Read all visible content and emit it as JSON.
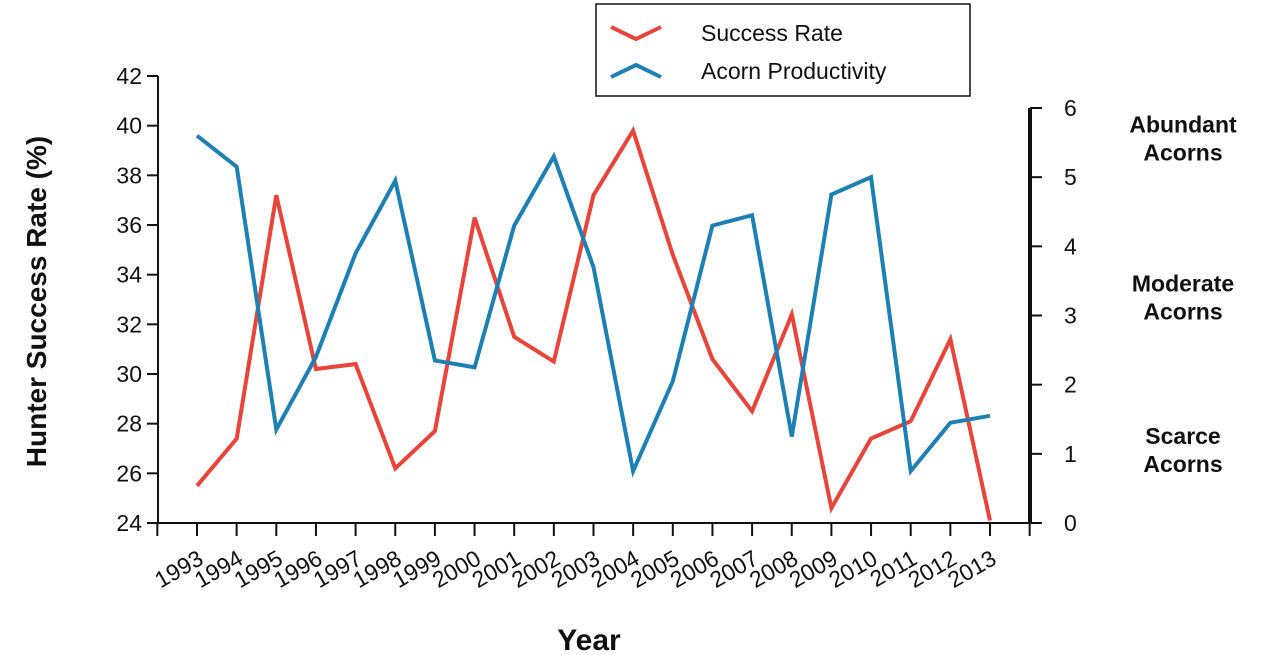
{
  "chart_data": {
    "type": "line",
    "x": [
      "1993",
      "1994",
      "1995",
      "1996",
      "1997",
      "1998",
      "1999",
      "2000",
      "2001",
      "2002",
      "2003",
      "2004",
      "2005",
      "2006",
      "2007",
      "2008",
      "2009",
      "2010",
      "2011",
      "2012",
      "2013"
    ],
    "xlabel": "Year",
    "ylabel": "Hunter Success Rate (%)",
    "ylim": [
      24,
      42
    ],
    "yticks": [
      24,
      26,
      28,
      30,
      32,
      34,
      36,
      38,
      40,
      42
    ],
    "y2lim": [
      0,
      6
    ],
    "y2ticks": [
      0,
      1,
      2,
      3,
      4,
      5,
      6
    ],
    "y2_categories": [
      {
        "lines": [
          "Abundant",
          "Acorns"
        ],
        "value": 5.5
      },
      {
        "lines": [
          "Moderate",
          "Acorns"
        ],
        "value": 3.2
      },
      {
        "lines": [
          "Scarce",
          "Acorns"
        ],
        "value": 1.0
      }
    ],
    "series": [
      {
        "name": "Success Rate",
        "axis": "left",
        "color": "#e8443a",
        "values": [
          25.5,
          27.4,
          37.2,
          30.2,
          30.4,
          26.2,
          27.7,
          36.3,
          31.5,
          30.5,
          37.2,
          39.8,
          34.8,
          30.6,
          28.5,
          32.4,
          24.6,
          27.4,
          28.1,
          31.4,
          24.1
        ]
      },
      {
        "name": "Acorn Productivity",
        "axis": "right",
        "color": "#1d80b4",
        "values": [
          5.6,
          5.15,
          1.35,
          2.4,
          3.9,
          4.95,
          2.35,
          2.25,
          4.3,
          5.3,
          3.7,
          0.75,
          2.05,
          4.3,
          4.45,
          1.25,
          4.75,
          5.0,
          0.75,
          1.45,
          1.55
        ]
      }
    ],
    "legend": "top-center",
    "grid": false
  }
}
